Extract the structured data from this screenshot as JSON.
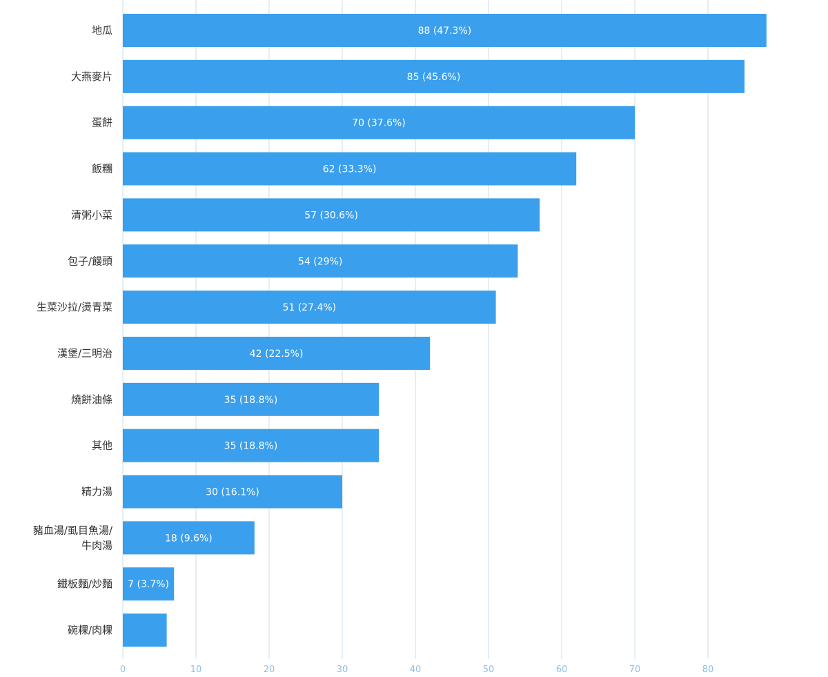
{
  "chart_data": {
    "type": "bar",
    "orientation": "horizontal",
    "categories": [
      [
        "地瓜"
      ],
      [
        "大燕麥片"
      ],
      [
        "蛋餅"
      ],
      [
        "飯糰"
      ],
      [
        "清粥小菜"
      ],
      [
        "包子/饅頭"
      ],
      [
        "生菜沙拉/燙青菜"
      ],
      [
        "漢堡/三明治"
      ],
      [
        "燒餅油條"
      ],
      [
        "其他"
      ],
      [
        "精力湯"
      ],
      [
        "豬血湯/虱目魚湯/",
        "牛肉湯"
      ],
      [
        "鐵板麵/炒麵"
      ],
      [
        "碗粿/肉粿"
      ]
    ],
    "values": [
      88,
      85,
      70,
      62,
      57,
      54,
      51,
      42,
      35,
      35,
      30,
      18,
      7,
      6
    ],
    "data_labels": [
      "88 (47.3%)",
      "85 (45.6%)",
      "70 (37.6%)",
      "62 (33.3%)",
      "57 (30.6%)",
      "54 (29%)",
      "51 (27.4%)",
      "42 (22.5%)",
      "35 (18.8%)",
      "35 (18.8%)",
      "30 (16.1%)",
      "18 (9.6%)",
      "7 (3.7%)",
      ""
    ],
    "x_ticks": [
      0,
      10,
      20,
      30,
      40,
      50,
      60,
      70,
      80
    ],
    "xlim": [
      0,
      90
    ],
    "grid": true,
    "title": "",
    "xlabel": "",
    "ylabel": "",
    "bar_color": "#3a9fed",
    "grid_color": "#d5e3ee",
    "tick_color": "#8fc0e8",
    "label_color": "#333333"
  }
}
